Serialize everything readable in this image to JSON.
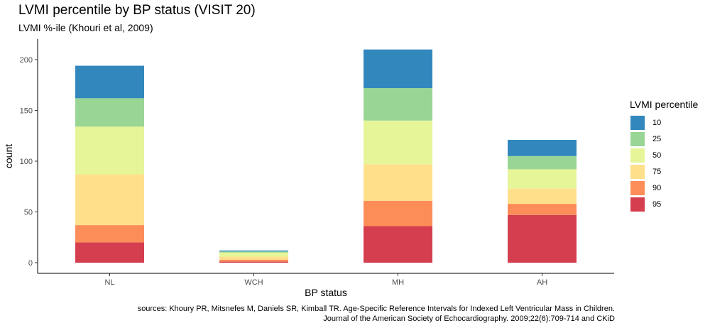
{
  "title": "LVMI percentile by BP status (VISIT 20)",
  "subtitle": "LVMI %-ile (Khouri et al, 2009)",
  "caption": [
    "sources: Khoury PR, Mitsnefes M, Daniels SR, Kimball TR. Age-Specific Reference Intervals for Indexed Left Ventricular Mass in Children.",
    "Journal of the American Society of Echocardiography. 2009;22(6):709-714 and CKiD"
  ],
  "legend": {
    "title": "LVMI percentile",
    "items": [
      {
        "label": "10",
        "color": "#3288BD"
      },
      {
        "label": "25",
        "color": "#99D594"
      },
      {
        "label": "50",
        "color": "#E6F598"
      },
      {
        "label": "75",
        "color": "#FEE08B"
      },
      {
        "label": "90",
        "color": "#FC8D59"
      },
      {
        "label": "95",
        "color": "#D53E4F"
      }
    ]
  },
  "chart_data": {
    "type": "bar",
    "stacked": true,
    "categories": [
      "NL",
      "WCH",
      "MH",
      "AH"
    ],
    "xlabel": "BP status",
    "ylabel": "count",
    "ylim": [
      0,
      220
    ],
    "yticks": [
      0,
      50,
      100,
      150,
      200
    ],
    "grid": false,
    "legend_position": "right",
    "series": [
      {
        "name": "95",
        "color": "#D53E4F",
        "values": [
          20,
          1,
          36,
          47
        ]
      },
      {
        "name": "90",
        "color": "#FC8D59",
        "values": [
          17,
          2,
          25,
          11
        ]
      },
      {
        "name": "75",
        "color": "#FEE08B",
        "values": [
          50,
          3,
          36,
          15
        ]
      },
      {
        "name": "50",
        "color": "#E6F598",
        "values": [
          47,
          4,
          43,
          19
        ]
      },
      {
        "name": "25",
        "color": "#99D594",
        "values": [
          28,
          1,
          32,
          13
        ]
      },
      {
        "name": "10",
        "color": "#3288BD",
        "values": [
          32,
          1,
          38,
          16
        ]
      }
    ]
  }
}
